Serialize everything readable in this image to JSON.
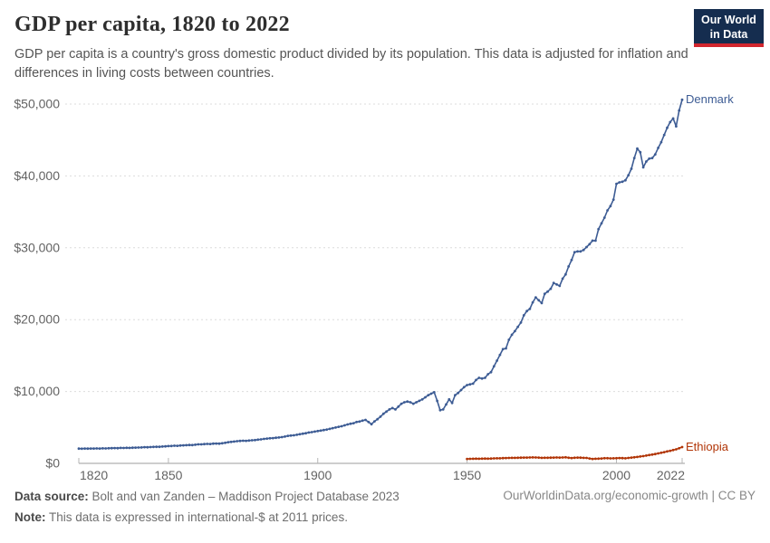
{
  "header": {
    "title": "GDP per capita, 1820 to 2022",
    "subtitle": "GDP per capita is a country's gross domestic product divided by its population. This data is adjusted for inflation and differences in living costs between countries.",
    "logo": {
      "line1": "Our World",
      "line2": "in Data",
      "bg_color": "#152d4f",
      "accent_color": "#d2262e"
    }
  },
  "chart_data": {
    "type": "line",
    "title": "GDP per capita, 1820 to 2022",
    "xlabel": "",
    "ylabel": "",
    "xlim": [
      1820,
      2022
    ],
    "ylim": [
      0,
      50000
    ],
    "grid": "horizontal-dashed",
    "legend_position": "end-of-line-labels",
    "axis_text_color": "#636363",
    "grid_color": "#dcdcdc",
    "axis_line_color": "#9e9e9e",
    "x_ticks": [
      {
        "value": 1820,
        "label": "1820",
        "align": "start"
      },
      {
        "value": 1850,
        "label": "1850",
        "align": "middle"
      },
      {
        "value": 1900,
        "label": "1900",
        "align": "middle"
      },
      {
        "value": 1950,
        "label": "1950",
        "align": "middle"
      },
      {
        "value": 2000,
        "label": "2000",
        "align": "middle"
      },
      {
        "value": 2022,
        "label": "2022",
        "align": "end"
      }
    ],
    "y_ticks": [
      {
        "value": 0,
        "label": "$0"
      },
      {
        "value": 10000,
        "label": "$10,000"
      },
      {
        "value": 20000,
        "label": "$20,000"
      },
      {
        "value": 30000,
        "label": "$30,000"
      },
      {
        "value": 40000,
        "label": "$40,000"
      },
      {
        "value": 50000,
        "label": "$50,000"
      }
    ],
    "series": [
      {
        "name": "Denmark",
        "color": "#3d5c94",
        "unit": "international-$ at 2011 prices",
        "start_year": 1820,
        "values": [
          2050,
          2040,
          2060,
          2050,
          2070,
          2060,
          2080,
          2070,
          2090,
          2080,
          2100,
          2110,
          2130,
          2120,
          2150,
          2140,
          2160,
          2150,
          2180,
          2190,
          2200,
          2220,
          2250,
          2240,
          2270,
          2290,
          2310,
          2300,
          2340,
          2370,
          2400,
          2420,
          2450,
          2440,
          2480,
          2500,
          2530,
          2560,
          2540,
          2590,
          2650,
          2640,
          2680,
          2710,
          2690,
          2740,
          2760,
          2750,
          2800,
          2860,
          2950,
          2990,
          3040,
          3080,
          3120,
          3150,
          3130,
          3170,
          3210,
          3240,
          3300,
          3340,
          3400,
          3450,
          3490,
          3520,
          3570,
          3600,
          3650,
          3730,
          3830,
          3870,
          3910,
          3980,
          4060,
          4130,
          4200,
          4290,
          4350,
          4420,
          4500,
          4560,
          4640,
          4710,
          4800,
          4900,
          4990,
          5090,
          5170,
          5290,
          5420,
          5520,
          5590,
          5750,
          5820,
          5950,
          6050,
          5750,
          5450,
          5850,
          6150,
          6500,
          6900,
          7200,
          7500,
          7700,
          7500,
          7900,
          8300,
          8500,
          8600,
          8500,
          8300,
          8500,
          8700,
          8900,
          9200,
          9500,
          9700,
          9900,
          8700,
          7400,
          7500,
          8200,
          8900,
          8400,
          9500,
          9800,
          10200,
          10600,
          10900,
          11000,
          11100,
          11600,
          11900,
          11800,
          11900,
          12400,
          12700,
          13500,
          14300,
          15100,
          15900,
          16000,
          17200,
          17900,
          18400,
          19000,
          19600,
          20600,
          21200,
          21500,
          22400,
          23100,
          22700,
          22300,
          23600,
          23900,
          24300,
          25100,
          24900,
          24700,
          25700,
          26300,
          27400,
          28300,
          29400,
          29500,
          29500,
          29700,
          30100,
          30500,
          31000,
          31000,
          32600,
          33400,
          34200,
          35200,
          35800,
          36700,
          38900,
          39100,
          39200,
          39400,
          40100,
          41000,
          42500,
          43800,
          43300,
          41200,
          42000,
          42400,
          42500,
          43000,
          43900,
          44700,
          45700,
          46700,
          47500,
          48000,
          46900,
          49100,
          50600
        ]
      },
      {
        "name": "Ethiopia",
        "color": "#b13507",
        "unit": "international-$ at 2011 prices",
        "start_year": 1950,
        "values": [
          620,
          630,
          640,
          650,
          640,
          660,
          670,
          660,
          670,
          690,
          700,
          710,
          730,
          740,
          760,
          770,
          770,
          780,
          790,
          800,
          810,
          820,
          830,
          820,
          800,
          770,
          780,
          780,
          790,
          810,
          820,
          810,
          820,
          850,
          780,
          740,
          780,
          800,
          790,
          770,
          760,
          680,
          620,
          640,
          650,
          680,
          720,
          720,
          690,
          710,
          720,
          740,
          730,
          710,
          760,
          800,
          850,
          900,
          960,
          1010,
          1080,
          1160,
          1220,
          1300,
          1380,
          1470,
          1560,
          1660,
          1750,
          1850,
          1950,
          2100,
          2270
        ]
      }
    ]
  },
  "footer": {
    "source_label": "Data source:",
    "source_text": " Bolt and van Zanden – Maddison Project Database 2023",
    "note_label": "Note:",
    "note_text": " This data is expressed in international-$ at 2011 prices.",
    "attribution": "OurWorldinData.org/economic-growth | CC BY"
  }
}
